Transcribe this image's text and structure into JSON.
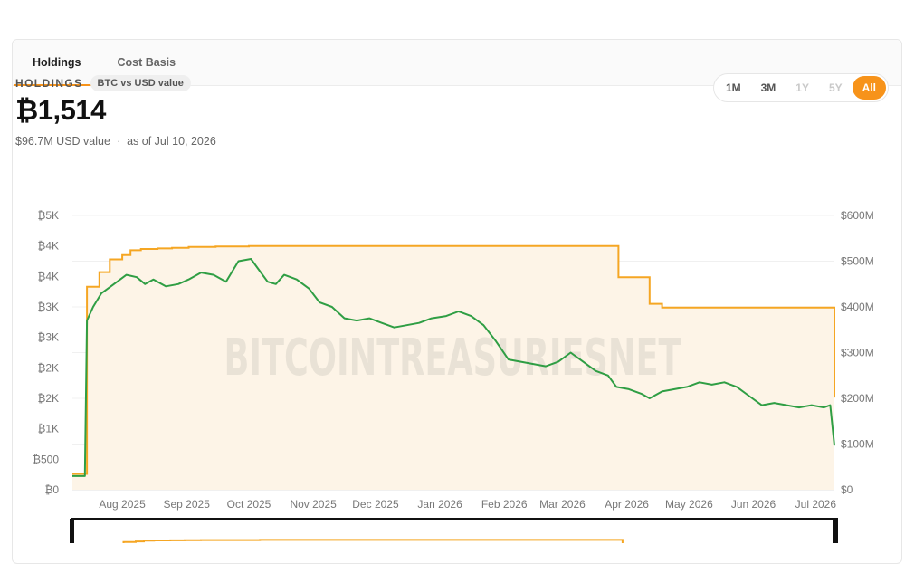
{
  "tabs": [
    {
      "label": "Holdings",
      "active": true
    },
    {
      "label": "Cost Basis",
      "active": false
    }
  ],
  "header": {
    "eyebrow": "HOLDINGS",
    "pill": "BTC vs USD value",
    "value": "₿1,514",
    "usd_value": "$96.7M USD value",
    "separator": "·",
    "as_of": "as of Jul 10, 2026"
  },
  "range_buttons": [
    {
      "label": "1M",
      "state": "enabled"
    },
    {
      "label": "3M",
      "state": "enabled"
    },
    {
      "label": "1Y",
      "state": "disabled"
    },
    {
      "label": "5Y",
      "state": "disabled"
    },
    {
      "label": "All",
      "state": "active"
    }
  ],
  "watermark": "BITCOINTREASURIESNET",
  "colors": {
    "accent": "#f7931a",
    "btc_line": "#f5a623",
    "usd_line": "#2f9e44",
    "area_fill": "#fdf4e7"
  },
  "chart_data": {
    "type": "line",
    "x_tick_labels": [
      "Aug 2025",
      "Sep 2025",
      "Oct 2025",
      "Nov 2025",
      "Dec 2025",
      "Jan 2026",
      "Feb 2026",
      "Mar 2026",
      "Apr 2026",
      "May 2026",
      "Jun 2026",
      "Jul 2026"
    ],
    "x_range": [
      "2025-07-08",
      "2026-07-10"
    ],
    "left_axis": {
      "ticks": [
        "₿0",
        "₿500",
        "₿1K",
        "₿2K",
        "₿2K",
        "₿3K",
        "₿3K",
        "₿4K",
        "₿4K",
        "₿5K"
      ],
      "range": [
        0,
        4500
      ]
    },
    "right_axis": {
      "ticks": [
        "$0",
        "$100M",
        "$200M",
        "$300M",
        "$400M",
        "$500M",
        "$600M"
      ],
      "range": [
        0,
        600
      ]
    },
    "grid": true,
    "series": [
      {
        "axis": "left",
        "x": [
          "2025-07-08",
          "2025-07-14",
          "2025-07-15",
          "2025-07-20",
          "2025-07-21",
          "2025-07-23",
          "2025-07-26",
          "2025-07-29",
          "2025-08-01",
          "2025-08-05",
          "2025-08-10",
          "2025-08-18",
          "2025-08-25",
          "2025-09-02",
          "2025-09-15",
          "2025-10-01",
          "2025-11-01",
          "2025-12-01",
          "2026-01-01",
          "2026-02-01",
          "2026-03-01",
          "2026-03-27",
          "2026-03-28",
          "2026-04-10",
          "2026-04-12",
          "2026-04-18",
          "2026-05-01",
          "2026-06-01",
          "2026-07-05",
          "2026-07-10"
        ],
        "y": [
          260,
          260,
          3330,
          3330,
          3570,
          3570,
          3780,
          3780,
          3850,
          3930,
          3950,
          3960,
          3970,
          3985,
          3990,
          4000,
          4000,
          4000,
          4000,
          4000,
          4000,
          4000,
          3485,
          3485,
          3050,
          2990,
          2990,
          2990,
          2990,
          1514
        ]
      },
      {
        "axis": "right",
        "x": [
          "2025-07-08",
          "2025-07-14",
          "2025-07-15",
          "2025-07-18",
          "2025-07-22",
          "2025-07-28",
          "2025-08-03",
          "2025-08-08",
          "2025-08-12",
          "2025-08-16",
          "2025-08-22",
          "2025-08-28",
          "2025-09-02",
          "2025-09-08",
          "2025-09-14",
          "2025-09-20",
          "2025-09-26",
          "2025-10-02",
          "2025-10-06",
          "2025-10-10",
          "2025-10-14",
          "2025-10-18",
          "2025-10-24",
          "2025-10-30",
          "2025-11-04",
          "2025-11-10",
          "2025-11-16",
          "2025-11-22",
          "2025-11-28",
          "2025-12-04",
          "2025-12-10",
          "2025-12-16",
          "2025-12-22",
          "2025-12-28",
          "2026-01-04",
          "2026-01-10",
          "2026-01-16",
          "2026-01-22",
          "2026-01-28",
          "2026-02-03",
          "2026-02-09",
          "2026-02-15",
          "2026-02-21",
          "2026-02-27",
          "2026-03-05",
          "2026-03-11",
          "2026-03-17",
          "2026-03-23",
          "2026-03-27",
          "2026-04-02",
          "2026-04-08",
          "2026-04-12",
          "2026-04-18",
          "2026-04-24",
          "2026-04-30",
          "2026-05-06",
          "2026-05-12",
          "2026-05-18",
          "2026-05-24",
          "2026-05-30",
          "2026-06-05",
          "2026-06-11",
          "2026-06-17",
          "2026-06-23",
          "2026-06-29",
          "2026-07-05",
          "2026-07-08",
          "2026-07-10"
        ],
        "y": [
          30,
          30,
          370,
          400,
          430,
          450,
          470,
          465,
          450,
          460,
          445,
          450,
          460,
          475,
          470,
          455,
          500,
          505,
          480,
          455,
          450,
          470,
          460,
          440,
          410,
          400,
          375,
          370,
          375,
          365,
          355,
          360,
          365,
          375,
          380,
          390,
          380,
          360,
          325,
          285,
          280,
          275,
          270,
          280,
          300,
          280,
          260,
          250,
          225,
          220,
          210,
          200,
          215,
          220,
          225,
          235,
          230,
          235,
          225,
          205,
          185,
          190,
          185,
          180,
          185,
          180,
          185,
          96.7
        ]
      }
    ]
  }
}
